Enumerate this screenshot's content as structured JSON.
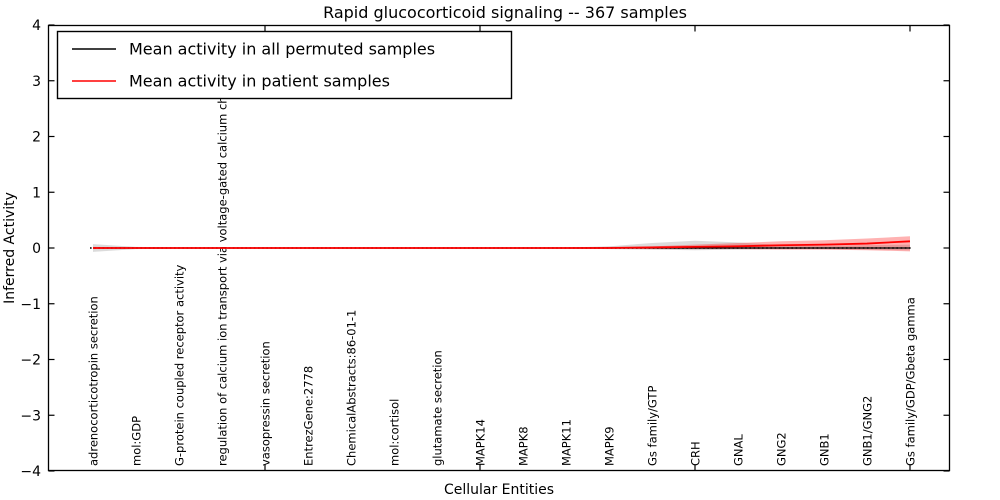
{
  "chart_data": {
    "type": "line",
    "title": "Rapid glucocorticoid signaling -- 367 samples",
    "xlabel": "Cellular Entities",
    "ylabel": "Inferred Activity",
    "ylim": [
      -4,
      4
    ],
    "yticks": [
      4,
      3,
      2,
      1,
      0,
      -1,
      -2,
      -3,
      -4
    ],
    "grid": false,
    "legend_position": "upper left",
    "zero_reference_line": {
      "y": 0,
      "style": "dotted",
      "color": "#000000"
    },
    "x_tick_label_rotation": 90,
    "categories": [
      "adrenocorticotropin secretion",
      "mol:GDP",
      "G-protein coupled receptor activity",
      "regulation of calcium ion transport via voltage-gated calcium channels",
      "vasopressin secretion",
      "EntrezGene:2778",
      "ChemicalAbstracts:86-01-1",
      "mol:cortisol",
      "glutamate secretion",
      "MAPK14",
      "MAPK8",
      "MAPK11",
      "MAPK9",
      "Gs family/GTP",
      "CRH",
      "GNAL",
      "GNG2",
      "GNB1",
      "GNB1/GNG2",
      "Gs family/GDP/Gbeta gamma"
    ],
    "series": [
      {
        "name": "Mean activity in all permuted samples",
        "color": "#000000",
        "band_color": "#999999",
        "values": [
          0,
          0,
          0,
          0,
          0,
          0,
          0,
          0,
          0,
          0,
          0,
          0,
          0,
          0,
          0,
          0,
          0,
          0,
          0,
          0
        ],
        "band_upper": [
          0.07,
          0.02,
          0.01,
          0.01,
          0.01,
          0.01,
          0.01,
          0.01,
          0.01,
          0.01,
          0.01,
          0.01,
          0.03,
          0.09,
          0.13,
          0.1,
          0.05,
          0.04,
          0.05,
          0.06
        ],
        "band_lower": [
          -0.07,
          -0.02,
          -0.01,
          -0.01,
          -0.01,
          -0.01,
          -0.01,
          -0.01,
          -0.01,
          -0.01,
          -0.01,
          -0.01,
          -0.02,
          -0.03,
          -0.04,
          -0.03,
          -0.02,
          -0.02,
          -0.03,
          -0.04
        ]
      },
      {
        "name": "Mean activity in patient samples",
        "color": "#ff0000",
        "band_color": "#ff0000",
        "values": [
          0,
          0,
          0,
          0,
          0,
          0,
          0,
          0,
          0,
          0,
          0,
          0,
          0,
          0.01,
          0.02,
          0.03,
          0.05,
          0.06,
          0.08,
          0.12
        ],
        "band_upper": [
          0.02,
          0.01,
          0.01,
          0.01,
          0.01,
          0.01,
          0.01,
          0.01,
          0.01,
          0.01,
          0.01,
          0.01,
          0.02,
          0.03,
          0.06,
          0.09,
          0.12,
          0.14,
          0.17,
          0.21
        ],
        "band_lower": [
          -0.02,
          -0.01,
          -0.01,
          -0.01,
          -0.01,
          -0.01,
          -0.01,
          -0.01,
          -0.01,
          -0.01,
          -0.01,
          -0.01,
          -0.01,
          -0.02,
          -0.02,
          -0.02,
          -0.03,
          -0.03,
          -0.04,
          -0.06
        ]
      }
    ]
  }
}
